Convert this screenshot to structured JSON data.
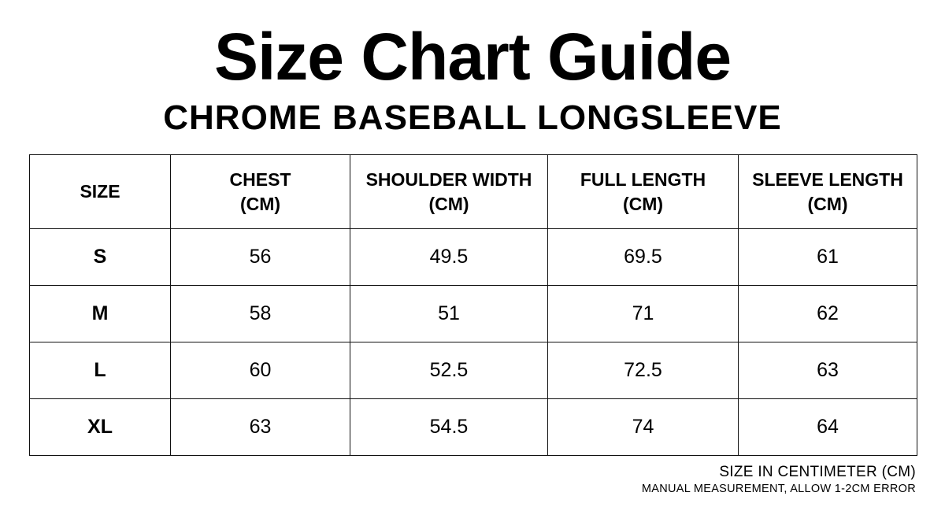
{
  "title": "Size Chart Guide",
  "subtitle": "CHROME BASEBALL LONGSLEEVE",
  "table": {
    "headers": [
      {
        "line1": "SIZE",
        "line2": ""
      },
      {
        "line1": "CHEST",
        "line2": "(CM)"
      },
      {
        "line1": "SHOULDER WIDTH",
        "line2": "(CM)"
      },
      {
        "line1": "FULL LENGTH",
        "line2": "(CM)"
      },
      {
        "line1": "SLEEVE LENGTH",
        "line2": "(CM)"
      }
    ],
    "rows": [
      [
        "S",
        "56",
        "49.5",
        "69.5",
        "61"
      ],
      [
        "M",
        "58",
        "51",
        "71",
        "62"
      ],
      [
        "L",
        "60",
        "52.5",
        "72.5",
        "63"
      ],
      [
        "XL",
        "63",
        "54.5",
        "74",
        "64"
      ]
    ]
  },
  "notes": {
    "unit": "SIZE IN CENTIMETER (CM)",
    "disclaimer": "MANUAL MEASUREMENT, ALLOW 1-2CM ERROR"
  }
}
